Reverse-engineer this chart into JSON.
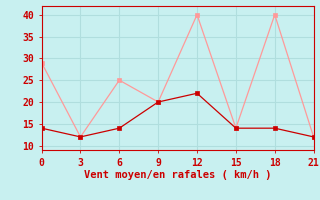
{
  "x": [
    0,
    3,
    6,
    9,
    12,
    15,
    18,
    21
  ],
  "line1_y": [
    14,
    12,
    14,
    20,
    22,
    14,
    14,
    12
  ],
  "line2_y": [
    29,
    12,
    25,
    20,
    40,
    14,
    40,
    12
  ],
  "line1_color": "#cc0000",
  "line2_color": "#ff9999",
  "background_color": "#c8f0f0",
  "grid_color": "#b0dede",
  "axis_color": "#cc0000",
  "xlabel": "Vent moyen/en rafales ( km/h )",
  "xlim": [
    0,
    21
  ],
  "ylim": [
    9,
    42
  ],
  "xticks": [
    0,
    3,
    6,
    9,
    12,
    15,
    18,
    21
  ],
  "yticks": [
    10,
    15,
    20,
    25,
    30,
    35,
    40
  ],
  "xlabel_fontsize": 7.5,
  "tick_fontsize": 7
}
